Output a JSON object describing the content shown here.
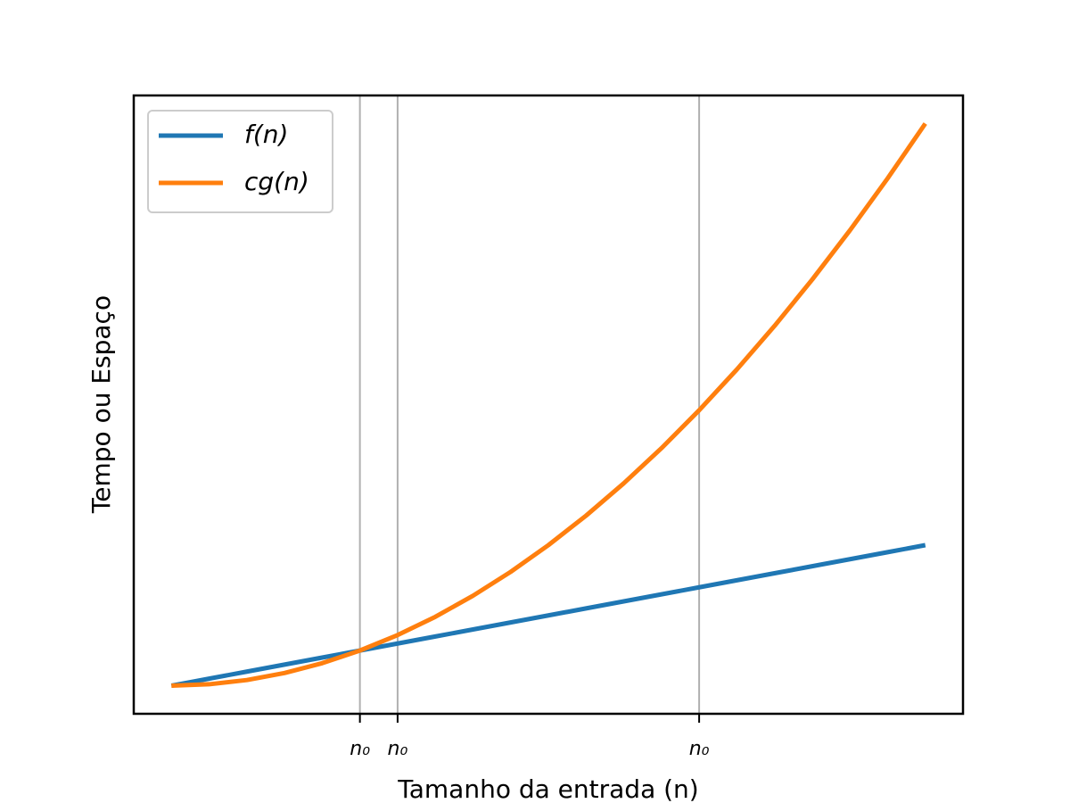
{
  "chart_data": {
    "type": "line",
    "xlabel": "Tamanho da entrada (n)",
    "ylabel": "Tempo ou Espaço",
    "x": [
      0,
      0.5,
      1,
      1.5,
      2,
      2.5,
      3,
      3.5,
      4,
      4.5,
      5,
      5.5,
      6,
      6.5,
      7,
      7.5,
      8,
      8.5,
      9,
      9.5,
      10
    ],
    "series": [
      {
        "name": "f(n)",
        "color": "#1f77b4",
        "values": [
          0,
          0.5,
          1,
          1.5,
          2,
          2.5,
          3,
          3.5,
          4,
          4.5,
          5,
          5.5,
          6,
          6.5,
          7,
          7.5,
          8,
          8.5,
          9,
          9.5,
          10
        ]
      },
      {
        "name": "cg(n)",
        "color": "#ff7f0e",
        "values": [
          0,
          0.1,
          0.4,
          0.9,
          1.6,
          2.5,
          3.6,
          4.9,
          6.4,
          8.1,
          10,
          12.1,
          14.4,
          16.9,
          19.6,
          22.5,
          25.6,
          28.9,
          32.4,
          36.1,
          40
        ]
      }
    ],
    "xlim": [
      -0.5,
      10.5
    ],
    "ylim": [
      -2,
      42
    ],
    "xticks": [
      {
        "value": 2.5,
        "label": "n₀"
      },
      {
        "value": 3,
        "label": "n₀"
      },
      {
        "value": 7,
        "label": "n₀"
      }
    ],
    "grid": "x",
    "legend": "upper left"
  }
}
